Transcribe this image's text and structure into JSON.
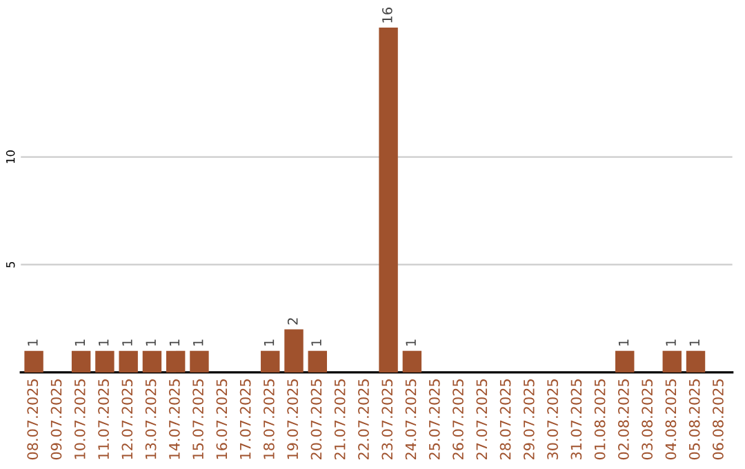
{
  "chart_data": {
    "type": "bar",
    "categories": [
      "08.07.2025",
      "09.07.2025",
      "10.07.2025",
      "11.07.2025",
      "12.07.2025",
      "13.07.2025",
      "14.07.2025",
      "15.07.2025",
      "16.07.2025",
      "17.07.2025",
      "18.07.2025",
      "19.07.2025",
      "20.07.2025",
      "21.07.2025",
      "22.07.2025",
      "23.07.2025",
      "24.07.2025",
      "25.07.2025",
      "26.07.2025",
      "27.07.2025",
      "28.07.2025",
      "29.07.2025",
      "30.07.2025",
      "31.07.2025",
      "01.08.2025",
      "02.08.2025",
      "03.08.2025",
      "04.08.2025",
      "05.08.2025",
      "06.08.2025"
    ],
    "values": [
      1,
      0,
      1,
      1,
      1,
      1,
      1,
      1,
      0,
      0,
      1,
      2,
      1,
      0,
      0,
      16,
      1,
      0,
      0,
      0,
      0,
      0,
      0,
      0,
      0,
      1,
      0,
      1,
      1,
      0
    ],
    "value_labels": [
      "1",
      null,
      "1",
      "1",
      "1",
      "1",
      "1",
      "1",
      null,
      null,
      "1",
      "2",
      "1",
      null,
      null,
      "16",
      "1",
      null,
      null,
      null,
      null,
      null,
      null,
      null,
      null,
      "1",
      null,
      "1",
      "1",
      null
    ],
    "color": "#a0522d",
    "ylim": [
      0,
      16
    ],
    "yticks": [
      5,
      10
    ],
    "grid": "y"
  }
}
